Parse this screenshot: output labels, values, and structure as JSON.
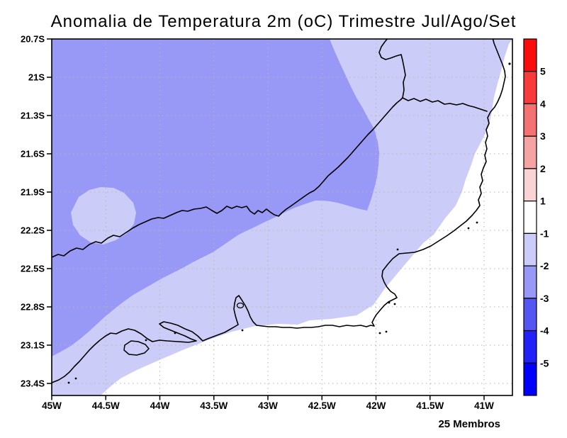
{
  "title": "Anomalia de Temperatura 2m (oC) Trimestre Jul/Ago/Set",
  "annotation": "25 Membros",
  "axes": {
    "lat_ticks": [
      "20.7S",
      "21S",
      "21.3S",
      "21.6S",
      "21.9S",
      "22.2S",
      "22.5S",
      "22.8S",
      "23.1S",
      "23.4S"
    ],
    "lon_ticks": [
      "45W",
      "44.5W",
      "44W",
      "43.5W",
      "43W",
      "42.5W",
      "42W",
      "41.5W",
      "41W"
    ]
  },
  "colorbar": {
    "labels": [
      "5",
      "4",
      "3",
      "2",
      "1",
      "-1",
      "-2",
      "-3",
      "-4",
      "-5"
    ],
    "colors": [
      "#fb0c0c",
      "#f93a3a",
      "#f57272",
      "#f5a3a3",
      "#fad4d4",
      "#ffffff",
      "#ccccf8",
      "#9898f6",
      "#5555f2",
      "#2222f8",
      "#0000fb"
    ]
  },
  "colors": {
    "minus2_minus3": "#9898f6",
    "minus1_minus2": "#ccccf8",
    "near_zero": "#ffffff",
    "grid": "#b6b6a8",
    "line": "#000000"
  },
  "chart_data": {
    "type": "heatmap",
    "subtype": "filled-contour temperature anomaly map (GrADS style)",
    "title": "Anomalia de Temperatura 2m (oC) Trimestre Jul/Ago/Set",
    "xlabel": "",
    "ylabel": "",
    "x_ticks": [
      "45W",
      "44.5W",
      "44W",
      "43.5W",
      "43W",
      "42.5W",
      "42W",
      "41.5W",
      "41W"
    ],
    "y_ticks": [
      "20.7S",
      "21S",
      "21.3S",
      "21.6S",
      "21.9S",
      "22.2S",
      "22.5S",
      "22.8S",
      "23.1S",
      "23.4S"
    ],
    "x_range": [
      "45W",
      "40.75W"
    ],
    "y_range": [
      "20.7S",
      "23.5S"
    ],
    "grid": "dotted",
    "colorbar": {
      "orientation": "vertical-right",
      "boundary_labels_top_to_bottom": [
        "5",
        "4",
        "3",
        "2",
        "1",
        "-1",
        "-2",
        "-3",
        "-4",
        "-5"
      ],
      "segment_colors_top_to_bottom": [
        "#fb0c0c",
        "#f93a3a",
        "#f57272",
        "#f5a3a3",
        "#fad4d4",
        "#ffffff",
        "#ccccf8",
        "#9898f6",
        "#5555f2",
        "#2222f8",
        "#0000fb"
      ]
    },
    "filled_regions": [
      {
        "anomaly_oC": "-3 to -2",
        "color": "#9898f6",
        "description": "large region over northwest and interior of the domain"
      },
      {
        "anomaly_oC": "-2 to -1",
        "color": "#ccccf8",
        "description": "central and eastern band, plus a small isolated patch near 44.4W / 22S"
      },
      {
        "anomaly_oC": "-1 to 1",
        "color": "#ffffff",
        "description": "eastern coastal strip and southern offshore area"
      }
    ],
    "map_overlay": "Rio de Janeiro state coastline and borders",
    "annotation": "25 Membros"
  }
}
